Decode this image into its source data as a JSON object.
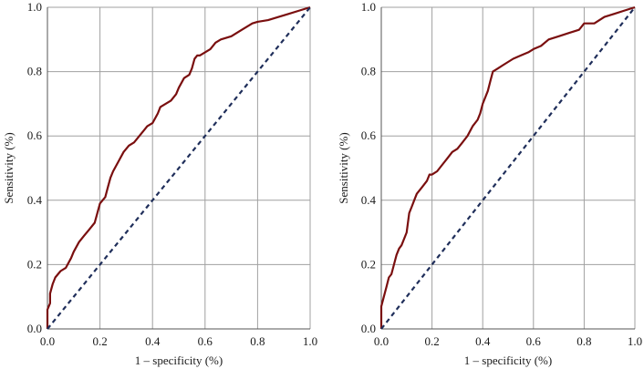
{
  "chart_data": [
    {
      "type": "line",
      "xlabel": "1 – specificity (%)",
      "ylabel": "Sensitivity (%)",
      "xlim": [
        0,
        1
      ],
      "ylim": [
        0,
        1
      ],
      "x_ticks": [
        "0.0",
        "0.2",
        "0.4",
        "0.6",
        "0.8",
        "1.0"
      ],
      "y_ticks": [
        "0.0",
        "0.2",
        "0.4",
        "0.6",
        "0.8",
        "1.0"
      ],
      "grid": true,
      "colors": {
        "roc": "#7a0f0f",
        "reference": "#1f2e5a",
        "grid": "#a0a0a0"
      },
      "series": [
        {
          "style": "solid",
          "x": [
            0.0,
            0.0,
            0.01,
            0.01,
            0.02,
            0.03,
            0.05,
            0.07,
            0.09,
            0.1,
            0.12,
            0.14,
            0.16,
            0.18,
            0.19,
            0.2,
            0.22,
            0.23,
            0.24,
            0.25,
            0.27,
            0.29,
            0.31,
            0.33,
            0.35,
            0.37,
            0.38,
            0.4,
            0.42,
            0.43,
            0.45,
            0.47,
            0.49,
            0.5,
            0.52,
            0.54,
            0.55,
            0.56,
            0.57,
            0.58,
            0.6,
            0.62,
            0.64,
            0.66,
            0.7,
            0.74,
            0.78,
            0.8,
            0.84,
            0.88,
            0.92,
            0.96,
            1.0
          ],
          "y": [
            0.0,
            0.06,
            0.08,
            0.11,
            0.14,
            0.16,
            0.18,
            0.19,
            0.22,
            0.24,
            0.27,
            0.29,
            0.31,
            0.33,
            0.36,
            0.39,
            0.41,
            0.44,
            0.47,
            0.49,
            0.52,
            0.55,
            0.57,
            0.58,
            0.6,
            0.62,
            0.63,
            0.64,
            0.67,
            0.69,
            0.7,
            0.71,
            0.73,
            0.75,
            0.78,
            0.79,
            0.81,
            0.84,
            0.85,
            0.85,
            0.86,
            0.87,
            0.89,
            0.9,
            0.91,
            0.93,
            0.95,
            0.955,
            0.96,
            0.97,
            0.98,
            0.99,
            1.0
          ]
        },
        {
          "style": "dashed",
          "x": [
            0,
            1
          ],
          "y": [
            0,
            1
          ]
        }
      ]
    },
    {
      "type": "line",
      "xlabel": "1 – specificity (%)",
      "ylabel": "Sensitivity (%)",
      "xlim": [
        0,
        1
      ],
      "ylim": [
        0,
        1
      ],
      "x_ticks": [
        "0.0",
        "0.2",
        "0.4",
        "0.6",
        "0.8",
        "1.0"
      ],
      "y_ticks": [
        "0.0",
        "0.2",
        "0.4",
        "0.6",
        "0.8",
        "1.0"
      ],
      "grid": true,
      "colors": {
        "roc": "#7a0f0f",
        "reference": "#1f2e5a",
        "grid": "#a0a0a0"
      },
      "series": [
        {
          "style": "solid",
          "x": [
            0.0,
            0.0,
            0.01,
            0.02,
            0.03,
            0.04,
            0.05,
            0.06,
            0.07,
            0.08,
            0.1,
            0.11,
            0.12,
            0.13,
            0.14,
            0.16,
            0.18,
            0.19,
            0.2,
            0.22,
            0.24,
            0.26,
            0.28,
            0.3,
            0.32,
            0.34,
            0.36,
            0.38,
            0.39,
            0.4,
            0.42,
            0.43,
            0.44,
            0.46,
            0.48,
            0.5,
            0.52,
            0.55,
            0.58,
            0.6,
            0.63,
            0.66,
            0.7,
            0.74,
            0.78,
            0.8,
            0.84,
            0.88,
            0.92,
            0.96,
            1.0
          ],
          "y": [
            0.0,
            0.07,
            0.1,
            0.13,
            0.16,
            0.17,
            0.2,
            0.23,
            0.25,
            0.26,
            0.3,
            0.36,
            0.38,
            0.4,
            0.42,
            0.44,
            0.46,
            0.48,
            0.48,
            0.49,
            0.51,
            0.53,
            0.55,
            0.56,
            0.58,
            0.6,
            0.63,
            0.65,
            0.67,
            0.7,
            0.74,
            0.77,
            0.8,
            0.81,
            0.82,
            0.83,
            0.84,
            0.85,
            0.86,
            0.87,
            0.88,
            0.9,
            0.91,
            0.92,
            0.93,
            0.95,
            0.95,
            0.97,
            0.98,
            0.99,
            1.0
          ]
        },
        {
          "style": "dashed",
          "x": [
            0,
            1
          ],
          "y": [
            0,
            1
          ]
        }
      ]
    }
  ]
}
